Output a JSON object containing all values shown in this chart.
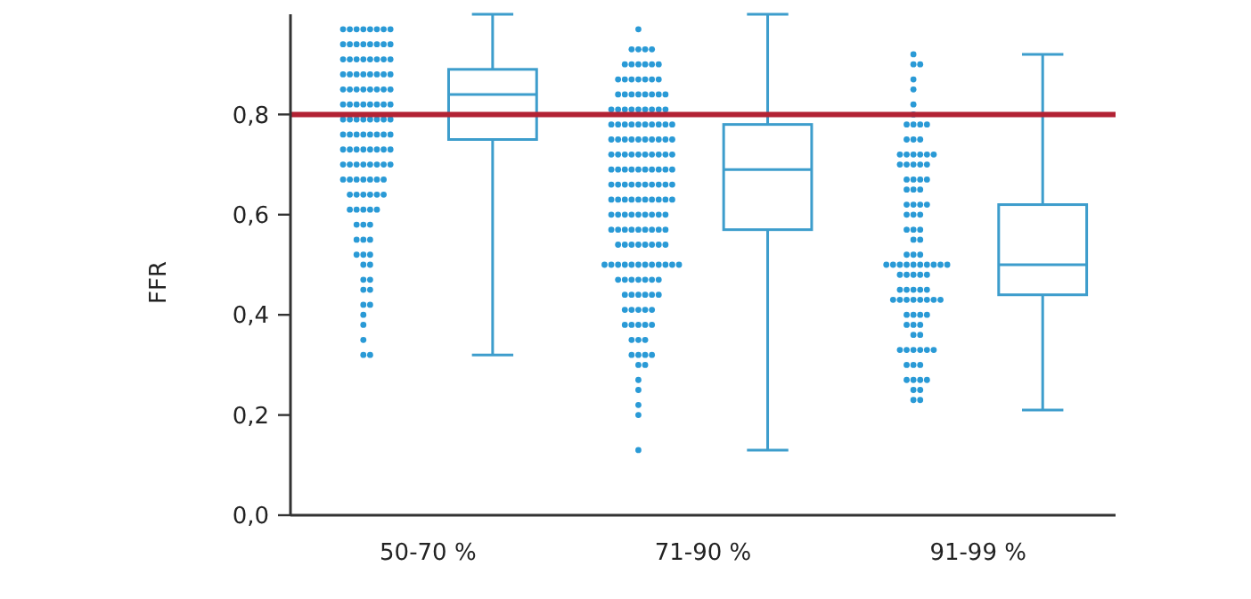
{
  "chart_data": {
    "type": "box",
    "ylabel": "FFR",
    "categories": [
      "50-70 %",
      "71-90 %",
      "91-99 %"
    ],
    "color": "#3d9dcc",
    "marker": "circle",
    "ylim": [
      0,
      1.0
    ],
    "yticks": [
      {
        "value": 0,
        "label": "0,0"
      },
      {
        "value": 0.2,
        "label": "0,2"
      },
      {
        "value": 0.4,
        "label": "0,4"
      },
      {
        "value": 0.6,
        "label": "0,6"
      },
      {
        "value": 0.8,
        "label": "0,8"
      }
    ],
    "boxes": [
      {
        "low": 0.32,
        "q1": 0.75,
        "median": 0.84,
        "q3": 0.89,
        "high": 1.0
      },
      {
        "low": 0.13,
        "q1": 0.57,
        "median": 0.69,
        "q3": 0.78,
        "high": 1.0
      },
      {
        "low": 0.21,
        "q1": 0.44,
        "median": 0.5,
        "q3": 0.62,
        "high": 0.92
      }
    ],
    "ref_lines": [
      {
        "axis": "y",
        "value": 0.8,
        "color": "#b22234"
      }
    ],
    "series": [
      {
        "type": "scatter",
        "color": "#2a9ad6",
        "x": [
          "50-70 %",
          "50-70 %",
          "50-70 %",
          "50-70 %",
          "50-70 %",
          "50-70 %",
          "50-70 %",
          "50-70 %",
          "50-70 %",
          "50-70 %",
          "50-70 %",
          "50-70 %",
          "50-70 %",
          "50-70 %",
          "50-70 %",
          "50-70 %",
          "50-70 %",
          "50-70 %",
          "50-70 %",
          "50-70 %",
          "50-70 %",
          "50-70 %",
          "50-70 %",
          "50-70 %",
          "50-70 %",
          "50-70 %",
          "50-70 %",
          "50-70 %",
          "50-70 %",
          "50-70 %",
          "50-70 %",
          "50-70 %",
          "50-70 %",
          "50-70 %",
          "50-70 %",
          "50-70 %",
          "50-70 %",
          "50-70 %",
          "50-70 %",
          "50-70 %",
          "50-70 %",
          "50-70 %",
          "50-70 %",
          "50-70 %",
          "50-70 %",
          "50-70 %",
          "50-70 %",
          "50-70 %",
          "50-70 %",
          "50-70 %",
          "50-70 %",
          "50-70 %",
          "50-70 %",
          "50-70 %",
          "50-70 %",
          "50-70 %",
          "50-70 %",
          "50-70 %",
          "50-70 %",
          "50-70 %",
          "50-70 %",
          "50-70 %",
          "50-70 %",
          "50-70 %",
          "50-70 %",
          "50-70 %",
          "50-70 %",
          "50-70 %",
          "50-70 %",
          "50-70 %",
          "50-70 %",
          "50-70 %",
          "50-70 %",
          "50-70 %",
          "50-70 %",
          "50-70 %",
          "50-70 %",
          "50-70 %",
          "50-70 %",
          "50-70 %",
          "50-70 %",
          "50-70 %",
          "50-70 %",
          "50-70 %",
          "50-70 %",
          "50-70 %",
          "50-70 %",
          "50-70 %",
          "50-70 %",
          "50-70 %",
          "50-70 %",
          "50-70 %",
          "50-70 %",
          "50-70 %",
          "50-70 %",
          "50-70 %",
          "50-70 %",
          "50-70 %",
          "50-70 %",
          "50-70 %",
          "50-70 %",
          "50-70 %",
          "50-70 %",
          "50-70 %",
          "50-70 %",
          "50-70 %",
          "50-70 %",
          "50-70 %",
          "50-70 %",
          "50-70 %",
          "50-70 %",
          "50-70 %",
          "50-70 %",
          "50-70 %",
          "50-70 %",
          "50-70 %",
          "50-70 %",
          "50-70 %",
          "50-70 %",
          "50-70 %"
        ],
        "values": [
          0.97,
          0.97,
          0.97,
          0.97,
          0.97,
          0.97,
          0.97,
          0.97,
          0.94,
          0.94,
          0.94,
          0.94,
          0.94,
          0.94,
          0.94,
          0.94,
          0.91,
          0.91,
          0.91,
          0.91,
          0.91,
          0.91,
          0.91,
          0.91,
          0.88,
          0.88,
          0.88,
          0.88,
          0.88,
          0.88,
          0.88,
          0.88,
          0.85,
          0.85,
          0.85,
          0.85,
          0.85,
          0.85,
          0.85,
          0.85,
          0.82,
          0.82,
          0.82,
          0.82,
          0.82,
          0.82,
          0.82,
          0.82,
          0.79,
          0.79,
          0.79,
          0.79,
          0.79,
          0.79,
          0.79,
          0.79,
          0.76,
          0.76,
          0.76,
          0.76,
          0.76,
          0.76,
          0.76,
          0.76,
          0.73,
          0.73,
          0.73,
          0.73,
          0.73,
          0.73,
          0.73,
          0.73,
          0.7,
          0.7,
          0.7,
          0.7,
          0.7,
          0.7,
          0.7,
          0.7,
          0.67,
          0.67,
          0.67,
          0.67,
          0.67,
          0.67,
          0.67,
          0.64,
          0.64,
          0.64,
          0.64,
          0.64,
          0.64,
          0.61,
          0.61,
          0.61,
          0.61,
          0.61,
          0.58,
          0.58,
          0.58,
          0.55,
          0.55,
          0.55,
          0.52,
          0.52,
          0.52,
          0.5,
          0.5,
          0.47,
          0.47,
          0.45,
          0.45,
          0.42,
          0.42,
          0.4,
          0.38,
          0.35,
          0.32,
          0.32
        ]
      },
      {
        "type": "scatter",
        "color": "#2a9ad6",
        "x": [
          "71-90 %",
          "71-90 %",
          "71-90 %",
          "71-90 %",
          "71-90 %",
          "71-90 %",
          "71-90 %",
          "71-90 %",
          "71-90 %",
          "71-90 %",
          "71-90 %",
          "71-90 %",
          "71-90 %",
          "71-90 %",
          "71-90 %",
          "71-90 %",
          "71-90 %",
          "71-90 %",
          "71-90 %",
          "71-90 %",
          "71-90 %",
          "71-90 %",
          "71-90 %",
          "71-90 %",
          "71-90 %",
          "71-90 %",
          "71-90 %",
          "71-90 %",
          "71-90 %",
          "71-90 %",
          "71-90 %",
          "71-90 %",
          "71-90 %",
          "71-90 %",
          "71-90 %",
          "71-90 %",
          "71-90 %",
          "71-90 %",
          "71-90 %",
          "71-90 %",
          "71-90 %",
          "71-90 %",
          "71-90 %",
          "71-90 %",
          "71-90 %",
          "71-90 %",
          "71-90 %",
          "71-90 %",
          "71-90 %",
          "71-90 %",
          "71-90 %",
          "71-90 %",
          "71-90 %",
          "71-90 %",
          "71-90 %",
          "71-90 %",
          "71-90 %",
          "71-90 %",
          "71-90 %",
          "71-90 %",
          "71-90 %",
          "71-90 %",
          "71-90 %",
          "71-90 %",
          "71-90 %",
          "71-90 %",
          "71-90 %",
          "71-90 %",
          "71-90 %",
          "71-90 %",
          "71-90 %",
          "71-90 %",
          "71-90 %",
          "71-90 %",
          "71-90 %",
          "71-90 %",
          "71-90 %",
          "71-90 %",
          "71-90 %",
          "71-90 %",
          "71-90 %",
          "71-90 %",
          "71-90 %",
          "71-90 %",
          "71-90 %",
          "71-90 %",
          "71-90 %",
          "71-90 %",
          "71-90 %",
          "71-90 %",
          "71-90 %",
          "71-90 %",
          "71-90 %",
          "71-90 %",
          "71-90 %",
          "71-90 %",
          "71-90 %",
          "71-90 %",
          "71-90 %",
          "71-90 %",
          "71-90 %",
          "71-90 %",
          "71-90 %",
          "71-90 %",
          "71-90 %",
          "71-90 %",
          "71-90 %",
          "71-90 %",
          "71-90 %",
          "71-90 %",
          "71-90 %",
          "71-90 %",
          "71-90 %",
          "71-90 %",
          "71-90 %",
          "71-90 %",
          "71-90 %",
          "71-90 %",
          "71-90 %",
          "71-90 %",
          "71-90 %",
          "71-90 %",
          "71-90 %",
          "71-90 %",
          "71-90 %",
          "71-90 %",
          "71-90 %",
          "71-90 %",
          "71-90 %",
          "71-90 %",
          "71-90 %",
          "71-90 %",
          "71-90 %",
          "71-90 %",
          "71-90 %",
          "71-90 %",
          "71-90 %",
          "71-90 %",
          "71-90 %",
          "71-90 %",
          "71-90 %",
          "71-90 %",
          "71-90 %",
          "71-90 %",
          "71-90 %",
          "71-90 %",
          "71-90 %",
          "71-90 %",
          "71-90 %",
          "71-90 %",
          "71-90 %",
          "71-90 %",
          "71-90 %",
          "71-90 %",
          "71-90 %",
          "71-90 %",
          "71-90 %",
          "71-90 %",
          "71-90 %",
          "71-90 %",
          "71-90 %",
          "71-90 %",
          "71-90 %",
          "71-90 %",
          "71-90 %",
          "71-90 %",
          "71-90 %",
          "71-90 %",
          "71-90 %",
          "71-90 %"
        ],
        "values": [
          0.97,
          0.93,
          0.93,
          0.93,
          0.93,
          0.9,
          0.9,
          0.9,
          0.9,
          0.9,
          0.9,
          0.87,
          0.87,
          0.87,
          0.87,
          0.87,
          0.87,
          0.87,
          0.84,
          0.84,
          0.84,
          0.84,
          0.84,
          0.84,
          0.84,
          0.84,
          0.81,
          0.81,
          0.81,
          0.81,
          0.81,
          0.81,
          0.81,
          0.81,
          0.81,
          0.78,
          0.78,
          0.78,
          0.78,
          0.78,
          0.78,
          0.78,
          0.78,
          0.78,
          0.78,
          0.75,
          0.75,
          0.75,
          0.75,
          0.75,
          0.75,
          0.75,
          0.75,
          0.75,
          0.75,
          0.72,
          0.72,
          0.72,
          0.72,
          0.72,
          0.72,
          0.72,
          0.72,
          0.72,
          0.72,
          0.69,
          0.69,
          0.69,
          0.69,
          0.69,
          0.69,
          0.69,
          0.69,
          0.69,
          0.69,
          0.66,
          0.66,
          0.66,
          0.66,
          0.66,
          0.66,
          0.66,
          0.66,
          0.66,
          0.66,
          0.63,
          0.63,
          0.63,
          0.63,
          0.63,
          0.63,
          0.63,
          0.63,
          0.63,
          0.63,
          0.6,
          0.6,
          0.6,
          0.6,
          0.6,
          0.6,
          0.6,
          0.6,
          0.6,
          0.57,
          0.57,
          0.57,
          0.57,
          0.57,
          0.57,
          0.57,
          0.57,
          0.57,
          0.54,
          0.54,
          0.54,
          0.54,
          0.54,
          0.54,
          0.54,
          0.54,
          0.5,
          0.5,
          0.5,
          0.5,
          0.5,
          0.5,
          0.5,
          0.5,
          0.5,
          0.5,
          0.5,
          0.5,
          0.47,
          0.47,
          0.47,
          0.47,
          0.47,
          0.47,
          0.47,
          0.44,
          0.44,
          0.44,
          0.44,
          0.44,
          0.44,
          0.41,
          0.41,
          0.41,
          0.41,
          0.41,
          0.38,
          0.38,
          0.38,
          0.38,
          0.38,
          0.35,
          0.35,
          0.35,
          0.32,
          0.32,
          0.32,
          0.32,
          0.3,
          0.3,
          0.27,
          0.25,
          0.22,
          0.2,
          0.13
        ]
      },
      {
        "type": "scatter",
        "color": "#2a9ad6",
        "x": [
          "91-99 %",
          "91-99 %",
          "91-99 %",
          "91-99 %",
          "91-99 %",
          "91-99 %",
          "91-99 %",
          "91-99 %",
          "91-99 %",
          "91-99 %",
          "91-99 %",
          "91-99 %",
          "91-99 %",
          "91-99 %",
          "91-99 %",
          "91-99 %",
          "91-99 %",
          "91-99 %",
          "91-99 %",
          "91-99 %",
          "91-99 %",
          "91-99 %",
          "91-99 %",
          "91-99 %",
          "91-99 %",
          "91-99 %",
          "91-99 %",
          "91-99 %",
          "91-99 %",
          "91-99 %",
          "91-99 %",
          "91-99 %",
          "91-99 %",
          "91-99 %",
          "91-99 %",
          "91-99 %",
          "91-99 %",
          "91-99 %",
          "91-99 %",
          "91-99 %",
          "91-99 %",
          "91-99 %",
          "91-99 %",
          "91-99 %",
          "91-99 %",
          "91-99 %",
          "91-99 %",
          "91-99 %",
          "91-99 %",
          "91-99 %",
          "91-99 %",
          "91-99 %",
          "91-99 %",
          "91-99 %",
          "91-99 %",
          "91-99 %",
          "91-99 %",
          "91-99 %",
          "91-99 %",
          "91-99 %",
          "91-99 %",
          "91-99 %",
          "91-99 %",
          "91-99 %",
          "91-99 %",
          "91-99 %",
          "91-99 %",
          "91-99 %",
          "91-99 %",
          "91-99 %",
          "91-99 %",
          "91-99 %",
          "91-99 %",
          "91-99 %",
          "91-99 %",
          "91-99 %",
          "91-99 %",
          "91-99 %",
          "91-99 %",
          "91-99 %",
          "91-99 %",
          "91-99 %",
          "91-99 %",
          "91-99 %",
          "91-99 %",
          "91-99 %",
          "91-99 %",
          "91-99 %",
          "91-99 %",
          "91-99 %",
          "91-99 %",
          "91-99 %",
          "91-99 %",
          "91-99 %",
          "91-99 %",
          "91-99 %",
          "91-99 %",
          "91-99 %",
          "91-99 %",
          "91-99 %",
          "91-99 %"
        ],
        "values": [
          0.92,
          0.9,
          0.9,
          0.87,
          0.85,
          0.82,
          0.8,
          0.78,
          0.78,
          0.78,
          0.78,
          0.75,
          0.75,
          0.75,
          0.72,
          0.72,
          0.72,
          0.72,
          0.72,
          0.72,
          0.7,
          0.7,
          0.7,
          0.7,
          0.7,
          0.67,
          0.67,
          0.67,
          0.67,
          0.65,
          0.65,
          0.65,
          0.62,
          0.62,
          0.62,
          0.62,
          0.6,
          0.6,
          0.6,
          0.57,
          0.57,
          0.57,
          0.55,
          0.55,
          0.52,
          0.52,
          0.52,
          0.5,
          0.5,
          0.5,
          0.5,
          0.5,
          0.5,
          0.5,
          0.5,
          0.5,
          0.5,
          0.48,
          0.48,
          0.48,
          0.48,
          0.48,
          0.45,
          0.45,
          0.45,
          0.45,
          0.45,
          0.43,
          0.43,
          0.43,
          0.43,
          0.43,
          0.43,
          0.43,
          0.43,
          0.4,
          0.4,
          0.4,
          0.4,
          0.38,
          0.38,
          0.38,
          0.36,
          0.36,
          0.33,
          0.33,
          0.33,
          0.33,
          0.33,
          0.33,
          0.3,
          0.3,
          0.3,
          0.27,
          0.27,
          0.27,
          0.27,
          0.25,
          0.25,
          0.23,
          0.23
        ]
      }
    ]
  }
}
